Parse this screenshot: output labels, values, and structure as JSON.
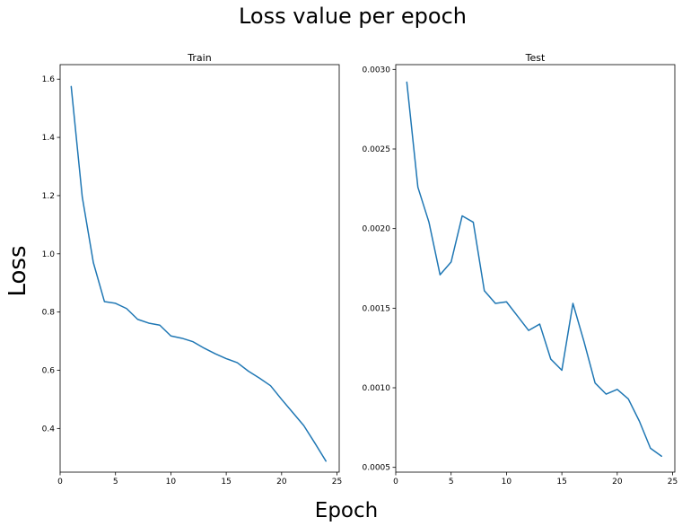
{
  "figure": {
    "suptitle": "Loss value per epoch",
    "supxlabel": "Epoch",
    "supylabel": "Loss"
  },
  "chart_data": [
    {
      "type": "line",
      "title": "Train",
      "xlabel": "",
      "ylabel": "",
      "xlim": [
        0,
        25.2
      ],
      "ylim": [
        0.25,
        1.65
      ],
      "xticks": [
        0,
        5,
        10,
        15,
        20,
        25
      ],
      "xtick_labels": [
        "0",
        "5",
        "10",
        "15",
        "20",
        "25"
      ],
      "yticks": [
        0.4,
        0.6,
        0.8,
        1.0,
        1.2,
        1.4,
        1.6
      ],
      "ytick_labels": [
        "0.4",
        "0.6",
        "0.8",
        "1.0",
        "1.2",
        "1.4",
        "1.6"
      ],
      "grid": false,
      "series": [
        {
          "color": "#1f77b4",
          "x": [
            1,
            2,
            3,
            4,
            5,
            6,
            7,
            8,
            9,
            10,
            11,
            12,
            13,
            14,
            15,
            16,
            17,
            18,
            19,
            20,
            21,
            22,
            23,
            24
          ],
          "y": [
            1.575,
            1.195,
            0.97,
            0.836,
            0.83,
            0.812,
            0.775,
            0.762,
            0.755,
            0.718,
            0.71,
            0.698,
            0.676,
            0.657,
            0.64,
            0.626,
            0.597,
            0.573,
            0.547,
            0.5,
            0.455,
            0.41,
            0.35,
            0.288
          ]
        }
      ]
    },
    {
      "type": "line",
      "title": "Test",
      "xlabel": "",
      "ylabel": "",
      "xlim": [
        0,
        25.2
      ],
      "ylim": [
        0.00047,
        0.00303
      ],
      "xticks": [
        0,
        5,
        10,
        15,
        20,
        25
      ],
      "xtick_labels": [
        "0",
        "5",
        "10",
        "15",
        "20",
        "25"
      ],
      "yticks": [
        0.0005,
        0.001,
        0.0015,
        0.002,
        0.0025,
        0.003
      ],
      "ytick_labels": [
        "0.0005",
        "0.0010",
        "0.0015",
        "0.0020",
        "0.0025",
        "0.0030"
      ],
      "grid": false,
      "series": [
        {
          "color": "#1f77b4",
          "x": [
            1,
            2,
            3,
            4,
            5,
            6,
            7,
            8,
            9,
            10,
            11,
            12,
            13,
            14,
            15,
            16,
            17,
            18,
            19,
            20,
            21,
            22,
            23,
            24
          ],
          "y": [
            0.00292,
            0.00226,
            0.00204,
            0.00171,
            0.00179,
            0.00208,
            0.00204,
            0.00161,
            0.00153,
            0.00154,
            0.00145,
            0.00136,
            0.0014,
            0.00118,
            0.00111,
            0.00153,
            0.00129,
            0.00103,
            0.00096,
            0.00099,
            0.00093,
            0.00079,
            0.00062,
            0.00057
          ]
        }
      ]
    }
  ]
}
